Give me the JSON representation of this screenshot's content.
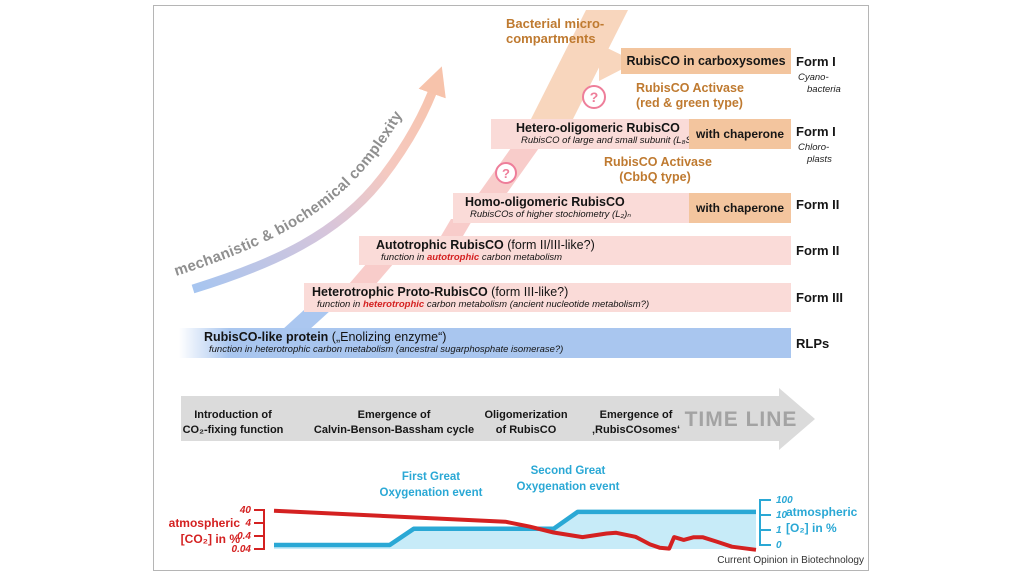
{
  "figure": {
    "credit": "Current Opinion in Biotechnology"
  },
  "complexity_arrow": {
    "label": "mechanistic & biochemical complexity"
  },
  "annotations": {
    "bacterial_micro": {
      "line1": "Bacterial micro-",
      "line2": "compartments"
    },
    "activase_red_green": {
      "line1": "RubisCO Activase",
      "line2": "(red & green type)"
    },
    "activase_cbbq": {
      "line1": "RubisCO Activase",
      "line2": "(CbbQ type)"
    },
    "question_mark": "?"
  },
  "rows": {
    "carboxysomes": {
      "title": "RubisCO in carboxysomes",
      "form": "Form I",
      "taxon_line1": "Cyano-",
      "taxon_line2": "bacteria"
    },
    "hetero_oligomeric": {
      "title": "Hetero-oligomeric RubisCO",
      "subtitle": "RubisCO of large and small subunit (L₈S₈)",
      "chaperone": "with chaperone",
      "form": "Form I",
      "taxon_line1": "Chloro-",
      "taxon_line2": "plasts"
    },
    "homo_oligomeric": {
      "title": "Homo-oligomeric RubisCO",
      "subtitle": "RubisCOs of higher stochiometry (L₂)ₙ",
      "chaperone": "with chaperone",
      "form": "Form II"
    },
    "autotrophic": {
      "title_strong": "Autotrophic RubisCO",
      "title_rest": " (form II/III-like?)",
      "subtitle_pre": "function in ",
      "subtitle_em": "autotrophic",
      "subtitle_post": " carbon metabolism",
      "form": "Form II"
    },
    "heterotrophic": {
      "title_strong": "Heterotrophic Proto-RubisCO",
      "title_rest": " (form III-like?)",
      "subtitle_pre": "function in ",
      "subtitle_em": "heterotrophic",
      "subtitle_post": " carbon metabolism (ancient nucleotide metabolism?)",
      "form": "Form III"
    },
    "rlp": {
      "title_strong": "RubisCO-like protein",
      "title_rest": " („Enolizing enzyme“)",
      "subtitle": "function in heterotrophic carbon metabolism (ancestral sugarphosphate isomerase?)",
      "form": "RLPs"
    }
  },
  "timeline": {
    "axis_label": "TIME LINE",
    "milestones": [
      {
        "line1": "Introduction of",
        "line2": "CO₂-fixing function"
      },
      {
        "line1": "Emergence of",
        "line2": "Calvin-Benson-Bassham cycle"
      },
      {
        "line1": "Oligomerization",
        "line2": "of RubisCO"
      },
      {
        "line1": "Emergence of",
        "line2": "‚RubisCOsomes‘"
      }
    ]
  },
  "chart_data": {
    "type": "line",
    "title": "",
    "annotations": [
      {
        "line1": "First Great",
        "line2": "Oxygenation event"
      },
      {
        "line1": "Second Great",
        "line2": "Oxygenation event"
      }
    ],
    "left_axis": {
      "label_line1": "atmospheric",
      "label_line2": "[CO₂] in %",
      "ticks": [
        "40",
        "4",
        "0.4",
        "0.04"
      ],
      "scale": "log",
      "range": [
        0.04,
        40
      ],
      "color": "#d42121"
    },
    "right_axis": {
      "label_line1": "atmospheric",
      "label_line2": "[O₂] in %",
      "ticks": [
        "100",
        "10",
        "1",
        "0"
      ],
      "scale": "log",
      "range": [
        0,
        100
      ],
      "color": "#2aa8d5"
    },
    "x_range": [
      0,
      100
    ],
    "grid": false,
    "series": [
      {
        "name": "atmospheric [CO₂] in %",
        "axis": "left",
        "color": "#d42121",
        "points": [
          [
            0,
            35
          ],
          [
            48,
            5
          ],
          [
            53,
            2.1
          ],
          [
            58,
            0.75
          ],
          [
            64,
            0.33
          ],
          [
            69,
            0.62
          ],
          [
            71,
            0.7
          ],
          [
            75,
            0.35
          ],
          [
            78,
            0.09
          ],
          [
            80,
            0.05
          ],
          [
            82,
            0.043
          ],
          [
            83,
            0.33
          ],
          [
            85,
            0.2
          ],
          [
            87,
            0.32
          ],
          [
            89,
            0.32
          ],
          [
            92,
            0.14
          ],
          [
            95,
            0.06
          ],
          [
            100,
            0.035
          ]
        ]
      },
      {
        "name": "atmospheric [O₂] in %",
        "axis": "right",
        "color": "#2aa8d5",
        "fill": "#c7ebf8",
        "points": [
          [
            0,
            0.1
          ],
          [
            24,
            0.1
          ],
          [
            29,
            1.2
          ],
          [
            58,
            1.2
          ],
          [
            63,
            16
          ],
          [
            100,
            16
          ]
        ]
      }
    ]
  }
}
